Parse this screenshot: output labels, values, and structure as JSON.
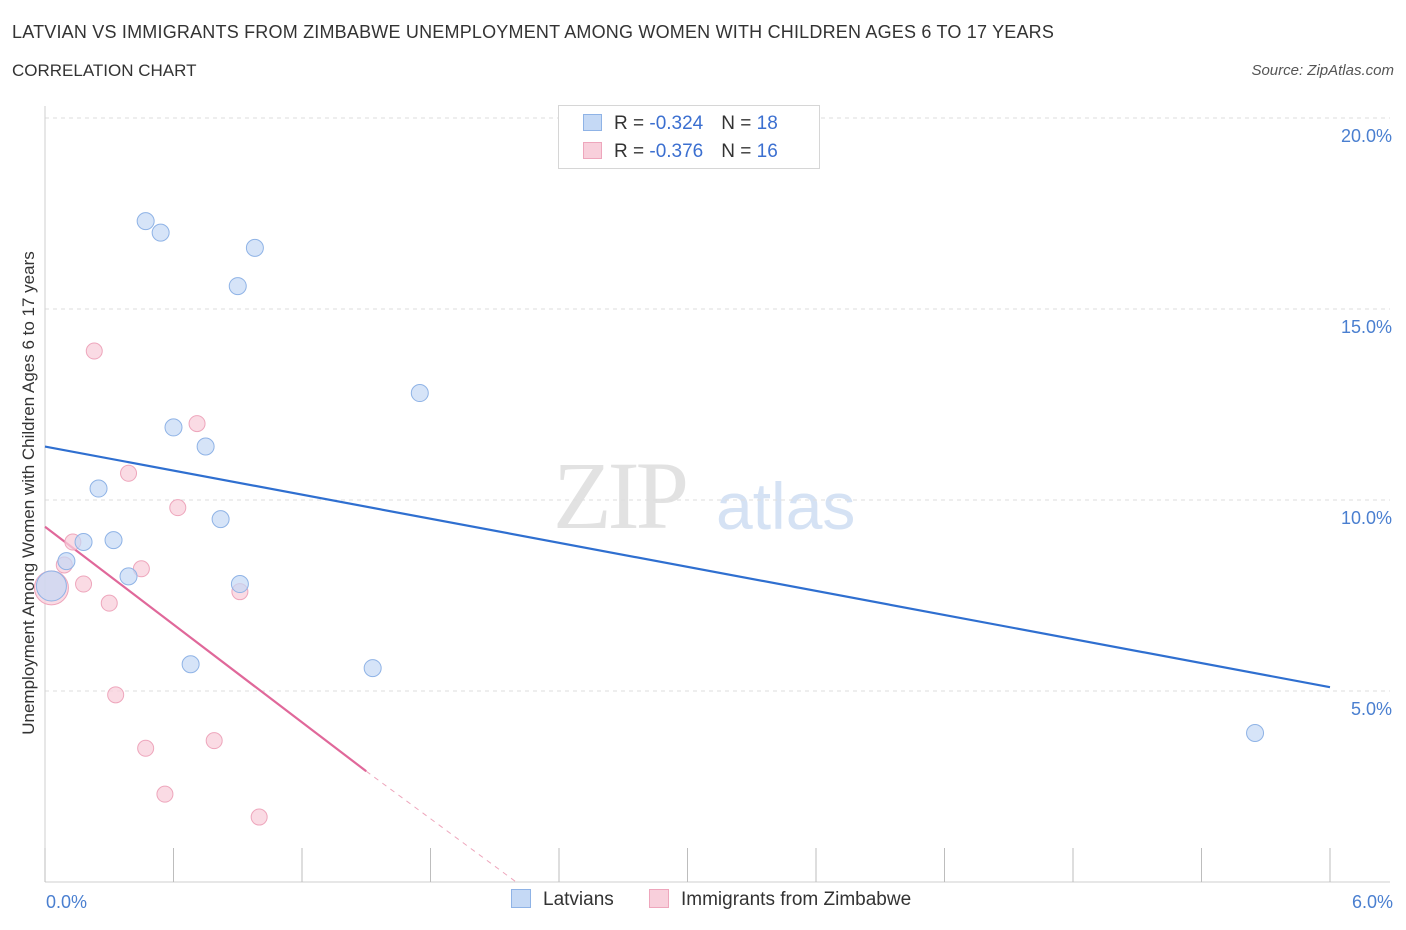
{
  "title": "LATVIAN VS IMMIGRANTS FROM ZIMBABWE UNEMPLOYMENT AMONG WOMEN WITH CHILDREN AGES 6 TO 17 YEARS",
  "subtitle": "CORRELATION CHART",
  "source": "Source: ZipAtlas.com",
  "watermark": {
    "zip": "ZIP",
    "atlas": "atlas"
  },
  "legend": {
    "rows": [
      {
        "r_label": "R = ",
        "r_value": "-0.324",
        "n_label": "N = ",
        "n_value": "18"
      },
      {
        "r_label": "R = ",
        "r_value": "-0.376",
        "n_label": "N = ",
        "n_value": "16"
      }
    ]
  },
  "bottom_legend": [
    "Latvians",
    "Immigrants from Zimbabwe"
  ],
  "colors": {
    "latvians_fill": "#c5d9f5",
    "latvians_stroke": "#8fb3e6",
    "latvians_line": "#2f6fd0",
    "zimbabwe_fill": "#f8cfdb",
    "zimbabwe_stroke": "#eea6bc",
    "zimbabwe_line": "#e0689a",
    "grid": "#dedede",
    "tick_text": "#4a7fd0"
  },
  "chart_data": {
    "type": "scatter",
    "title": "LATVIAN VS IMMIGRANTS FROM ZIMBABWE UNEMPLOYMENT AMONG WOMEN WITH CHILDREN AGES 6 TO 17 YEARS",
    "xlabel": "",
    "ylabel": "Unemployment Among Women with Children Ages 6 to 17 years",
    "xlim": [
      0,
      6
    ],
    "ylim": [
      0,
      20
    ],
    "x_tick_labels": [
      "0.0%",
      "6.0%"
    ],
    "y_ticks": [
      5,
      10,
      15,
      20
    ],
    "y_tick_labels": [
      "5.0%",
      "10.0%",
      "15.0%",
      "20.0%"
    ],
    "grid": true,
    "legend_position": "top-center",
    "series": [
      {
        "name": "Latvians",
        "points": [
          [
            0.47,
            17.3
          ],
          [
            0.54,
            17.0
          ],
          [
            0.98,
            16.6
          ],
          [
            0.9,
            15.6
          ],
          [
            1.75,
            12.8
          ],
          [
            0.6,
            11.9
          ],
          [
            0.75,
            11.4
          ],
          [
            0.25,
            10.3
          ],
          [
            0.82,
            9.5
          ],
          [
            0.18,
            8.9
          ],
          [
            0.32,
            8.95
          ],
          [
            0.1,
            8.4
          ],
          [
            0.39,
            8.0
          ],
          [
            0.91,
            7.8
          ],
          [
            0.68,
            5.7
          ],
          [
            1.53,
            5.6
          ],
          [
            5.65,
            3.9
          ],
          [
            0.03,
            7.75
          ]
        ],
        "trend": {
          "x": [
            0,
            6
          ],
          "y": [
            11.4,
            5.1
          ]
        }
      },
      {
        "name": "Immigrants from Zimbabwe",
        "points": [
          [
            0.23,
            13.9
          ],
          [
            0.71,
            12.0
          ],
          [
            0.39,
            10.7
          ],
          [
            0.62,
            9.8
          ],
          [
            0.13,
            8.9
          ],
          [
            0.09,
            8.3
          ],
          [
            0.45,
            8.2
          ],
          [
            0.18,
            7.8
          ],
          [
            0.91,
            7.6
          ],
          [
            0.3,
            7.3
          ],
          [
            0.33,
            4.9
          ],
          [
            0.47,
            3.5
          ],
          [
            0.79,
            3.7
          ],
          [
            0.56,
            2.3
          ],
          [
            1.0,
            1.7
          ],
          [
            0.03,
            7.7
          ]
        ],
        "trend": {
          "x": [
            0,
            1.5
          ],
          "y": [
            9.3,
            2.9
          ]
        },
        "trend_extension": {
          "x": [
            1.5,
            2.2
          ],
          "y": [
            2.9,
            0
          ]
        }
      }
    ]
  }
}
